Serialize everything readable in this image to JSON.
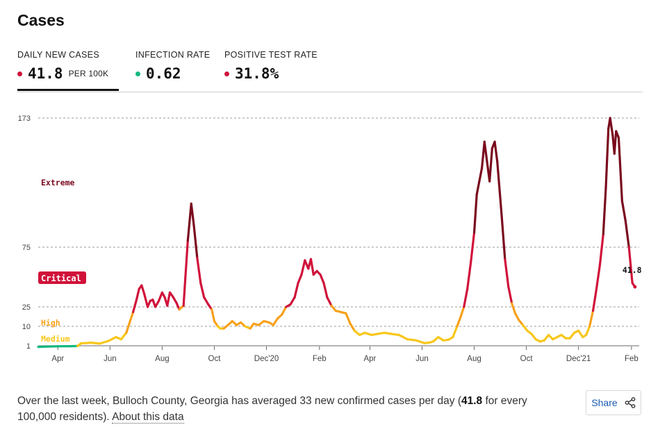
{
  "page": {
    "title": "Cases"
  },
  "tabs": [
    {
      "label": "DAILY NEW CASES",
      "value": "41.8",
      "unit": "PER 100K",
      "dot_color": "#d0123a",
      "active": true
    },
    {
      "label": "INFECTION RATE",
      "value": "0.62",
      "unit": "",
      "dot_color": "#11b981",
      "active": false
    },
    {
      "label": "POSITIVE TEST RATE",
      "value": "31.8%",
      "unit": "",
      "dot_color": "#d0123a",
      "active": false
    }
  ],
  "chart_data": {
    "type": "line",
    "y_ticks": [
      1,
      10,
      25,
      75,
      173
    ],
    "x_tick_labels": [
      "Apr",
      "Jun",
      "Aug",
      "Oct",
      "Dec'20",
      "Feb",
      "Apr",
      "Jun",
      "Aug",
      "Oct",
      "Dec'21",
      "Feb"
    ],
    "x_tick_dates": [
      "2020-04-01",
      "2020-06-01",
      "2020-08-01",
      "2020-10-01",
      "2020-12-01",
      "2021-02-01",
      "2021-04-01",
      "2021-06-01",
      "2021-08-01",
      "2021-10-01",
      "2021-12-01",
      "2022-02-01"
    ],
    "x_range": [
      "2020-03-09",
      "2022-02-10"
    ],
    "risk_levels": [
      {
        "label": "Extreme",
        "min": 75,
        "color": "#7a0a1e",
        "style": "text"
      },
      {
        "label": "Critical",
        "min": 25,
        "color": "#d0123a",
        "style": "badge"
      },
      {
        "label": "High",
        "min": 10,
        "color": "#f7a11b",
        "style": "text"
      },
      {
        "label": "Medium",
        "min": 1,
        "color": "#f7c71b",
        "style": "text"
      },
      {
        "label": "",
        "min": 0,
        "color": "#11b981",
        "style": "none"
      }
    ],
    "last_value_label": "41.8",
    "points": [
      [
        "2020-03-09",
        0.2
      ],
      [
        "2020-03-20",
        0.4
      ],
      [
        "2020-04-01",
        0.6
      ],
      [
        "2020-04-15",
        0.7
      ],
      [
        "2020-04-24",
        0.8
      ],
      [
        "2020-04-28",
        2.1
      ],
      [
        "2020-05-10",
        2.4
      ],
      [
        "2020-05-20",
        2.0
      ],
      [
        "2020-05-30",
        3.2
      ],
      [
        "2020-06-08",
        5.0
      ],
      [
        "2020-06-14",
        4.0
      ],
      [
        "2020-06-20",
        7.0
      ],
      [
        "2020-06-25",
        15.0
      ],
      [
        "2020-06-28",
        21.0
      ],
      [
        "2020-07-02",
        31.0
      ],
      [
        "2020-07-05",
        40.0
      ],
      [
        "2020-07-08",
        43.0
      ],
      [
        "2020-07-11",
        36.0
      ],
      [
        "2020-07-15",
        25.0
      ],
      [
        "2020-07-18",
        30.0
      ],
      [
        "2020-07-21",
        31.0
      ],
      [
        "2020-07-24",
        25.0
      ],
      [
        "2020-07-28",
        30.0
      ],
      [
        "2020-08-01",
        37.0
      ],
      [
        "2020-08-04",
        33.0
      ],
      [
        "2020-08-07",
        26.0
      ],
      [
        "2020-08-10",
        37.0
      ],
      [
        "2020-08-14",
        33.0
      ],
      [
        "2020-08-18",
        28.0
      ],
      [
        "2020-08-21",
        23.0
      ],
      [
        "2020-08-26",
        26.0
      ],
      [
        "2020-08-28",
        48.0
      ],
      [
        "2020-08-31",
        80.0
      ],
      [
        "2020-09-04",
        108.0
      ],
      [
        "2020-09-07",
        92.0
      ],
      [
        "2020-09-11",
        66.0
      ],
      [
        "2020-09-15",
        45.0
      ],
      [
        "2020-09-19",
        33.0
      ],
      [
        "2020-09-24",
        27.0
      ],
      [
        "2020-09-28",
        23.0
      ],
      [
        "2020-10-01",
        14.0
      ],
      [
        "2020-10-05",
        10.0
      ],
      [
        "2020-10-08",
        9.0
      ],
      [
        "2020-10-12",
        9.0
      ],
      [
        "2020-10-17",
        11.0
      ],
      [
        "2020-10-22",
        14.0
      ],
      [
        "2020-10-27",
        11.0
      ],
      [
        "2020-11-01",
        13.0
      ],
      [
        "2020-11-06",
        10.0
      ],
      [
        "2020-11-12",
        9.0
      ],
      [
        "2020-11-16",
        12.0
      ],
      [
        "2020-11-22",
        11.0
      ],
      [
        "2020-11-28",
        14.0
      ],
      [
        "2020-12-04",
        13.0
      ],
      [
        "2020-12-09",
        11.0
      ],
      [
        "2020-12-14",
        16.0
      ],
      [
        "2020-12-19",
        19.0
      ],
      [
        "2020-12-24",
        25.0
      ],
      [
        "2020-12-29",
        27.0
      ],
      [
        "2021-01-03",
        33.0
      ],
      [
        "2021-01-07",
        45.0
      ],
      [
        "2021-01-11",
        52.0
      ],
      [
        "2021-01-15",
        64.0
      ],
      [
        "2021-01-19",
        57.0
      ],
      [
        "2021-01-22",
        65.0
      ],
      [
        "2021-01-25",
        52.0
      ],
      [
        "2021-01-29",
        55.0
      ],
      [
        "2021-02-02",
        52.0
      ],
      [
        "2021-02-06",
        45.0
      ],
      [
        "2021-02-10",
        33.0
      ],
      [
        "2021-02-15",
        26.0
      ],
      [
        "2021-02-20",
        22.0
      ],
      [
        "2021-02-26",
        21.0
      ],
      [
        "2021-03-04",
        20.0
      ],
      [
        "2021-03-09",
        12.0
      ],
      [
        "2021-03-14",
        8.0
      ],
      [
        "2021-03-20",
        6.0
      ],
      [
        "2021-03-26",
        7.0
      ],
      [
        "2021-04-03",
        6.0
      ],
      [
        "2021-04-10",
        6.5
      ],
      [
        "2021-04-18",
        7.0
      ],
      [
        "2021-04-26",
        6.5
      ],
      [
        "2021-05-05",
        6.0
      ],
      [
        "2021-05-15",
        4.0
      ],
      [
        "2021-05-25",
        3.5
      ],
      [
        "2021-06-04",
        2.2
      ],
      [
        "2021-06-10",
        2.5
      ],
      [
        "2021-06-14",
        3.0
      ],
      [
        "2021-06-20",
        5.0
      ],
      [
        "2021-06-26",
        3.5
      ],
      [
        "2021-07-02",
        3.8
      ],
      [
        "2021-07-07",
        5.0
      ],
      [
        "2021-07-12",
        10.0
      ],
      [
        "2021-07-16",
        17.0
      ],
      [
        "2021-07-20",
        25.0
      ],
      [
        "2021-07-24",
        40.0
      ],
      [
        "2021-07-28",
        62.0
      ],
      [
        "2021-08-01",
        86.0
      ],
      [
        "2021-08-04",
        115.0
      ],
      [
        "2021-08-07",
        125.0
      ],
      [
        "2021-08-10",
        135.0
      ],
      [
        "2021-08-13",
        155.0
      ],
      [
        "2021-08-16",
        140.0
      ],
      [
        "2021-08-19",
        125.0
      ],
      [
        "2021-08-22",
        150.0
      ],
      [
        "2021-08-25",
        155.0
      ],
      [
        "2021-08-28",
        140.0
      ],
      [
        "2021-09-02",
        100.0
      ],
      [
        "2021-09-06",
        65.0
      ],
      [
        "2021-09-10",
        42.0
      ],
      [
        "2021-09-14",
        28.0
      ],
      [
        "2021-09-18",
        20.0
      ],
      [
        "2021-09-22",
        15.0
      ],
      [
        "2021-09-27",
        11.0
      ],
      [
        "2021-10-02",
        8.0
      ],
      [
        "2021-10-07",
        6.5
      ],
      [
        "2021-10-12",
        4.0
      ],
      [
        "2021-10-17",
        3.0
      ],
      [
        "2021-10-22",
        3.5
      ],
      [
        "2021-10-27",
        6.0
      ],
      [
        "2021-11-01",
        4.0
      ],
      [
        "2021-11-06",
        5.0
      ],
      [
        "2021-11-11",
        6.0
      ],
      [
        "2021-11-16",
        4.5
      ],
      [
        "2021-11-21",
        4.5
      ],
      [
        "2021-11-26",
        7.0
      ],
      [
        "2021-12-01",
        8.0
      ],
      [
        "2021-12-06",
        5.0
      ],
      [
        "2021-12-10",
        6.0
      ],
      [
        "2021-12-14",
        10.0
      ],
      [
        "2021-12-18",
        22.0
      ],
      [
        "2021-12-22",
        40.0
      ],
      [
        "2021-12-26",
        60.0
      ],
      [
        "2021-12-30",
        85.0
      ],
      [
        "2022-01-02",
        120.0
      ],
      [
        "2022-01-05",
        165.0
      ],
      [
        "2022-01-07",
        173.0
      ],
      [
        "2022-01-10",
        160.0
      ],
      [
        "2022-01-12",
        146.0
      ],
      [
        "2022-01-14",
        163.0
      ],
      [
        "2022-01-17",
        158.0
      ],
      [
        "2022-01-21",
        110.0
      ],
      [
        "2022-01-25",
        95.0
      ],
      [
        "2022-01-29",
        75.0
      ],
      [
        "2022-01-31",
        60.0
      ],
      [
        "2022-02-02",
        45.0
      ],
      [
        "2022-02-05",
        41.8
      ]
    ]
  },
  "footer": {
    "text_before": "Over the last week, Bulloch County, Georgia has averaged 33 new confirmed cases per day (",
    "highlight": "41.8",
    "text_after": " for every 100,000 residents). ",
    "link_label": "About this data"
  },
  "share": {
    "label": "Share",
    "icon": "share-icon"
  }
}
